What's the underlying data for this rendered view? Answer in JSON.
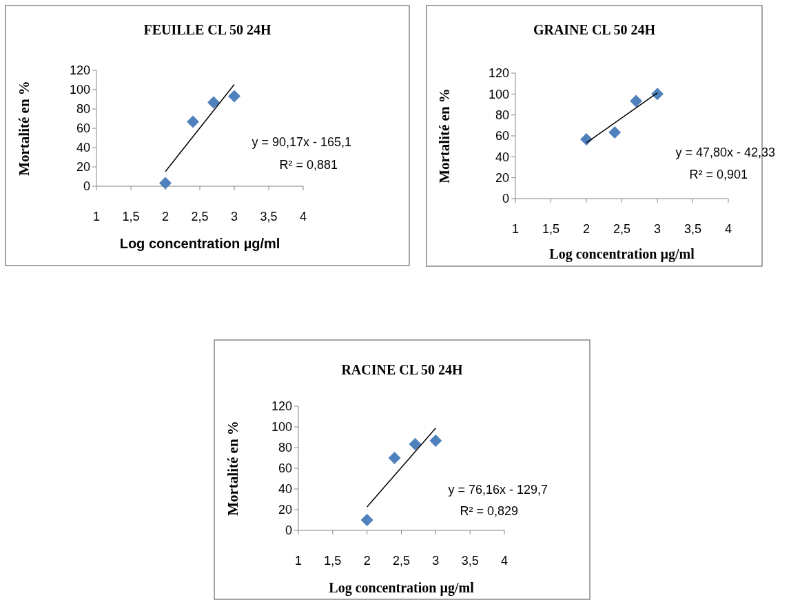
{
  "chart_data": [
    {
      "type": "scatter",
      "title": "FEUILLE CL 50 24H",
      "xlabel": "Log concentration µg/ml",
      "ylabel": "Mortalité en %",
      "xlim": [
        1,
        4
      ],
      "xticks": [
        1,
        {
          "value": 1.5,
          "label": "1,5"
        },
        2,
        {
          "value": 2.5,
          "label": "2,5"
        },
        3,
        {
          "value": 3.5,
          "label": "3,5"
        },
        4
      ],
      "ylim": [
        0,
        120
      ],
      "yticks": [
        0,
        20,
        40,
        60,
        80,
        100,
        120
      ],
      "grid": false,
      "series": [
        {
          "color": "#4f81bd",
          "marker": "diamond",
          "x": [
            2,
            2.4,
            2.7,
            3
          ],
          "values": [
            3.3,
            66.7,
            86.7,
            93.3
          ]
        },
        {
          "type": "line",
          "color": "#000000",
          "marker": "none",
          "x": [
            2,
            3
          ],
          "values": [
            15.2,
            105.4
          ]
        }
      ],
      "annotations": [
        "y = 90,17x - 165,1",
        "R² = 0,881"
      ]
    },
    {
      "type": "scatter",
      "title": "GRAINE CL 50 24H",
      "xlabel": "Log concentration µg/ml",
      "ylabel": "Mortalité en %",
      "xlim": [
        1,
        4
      ],
      "xticks": [
        1,
        {
          "value": 1.5,
          "label": "1,5"
        },
        2,
        {
          "value": 2.5,
          "label": "2,5"
        },
        3,
        {
          "value": 3.5,
          "label": "3,5"
        },
        4
      ],
      "ylim": [
        0,
        120
      ],
      "yticks": [
        0,
        20,
        40,
        60,
        80,
        100,
        120
      ],
      "grid": false,
      "series": [
        {
          "color": "#4f81bd",
          "marker": "diamond",
          "x": [
            2,
            2.4,
            2.7,
            3
          ],
          "values": [
            56.7,
            63.3,
            93.3,
            100
          ]
        },
        {
          "type": "line",
          "color": "#000000",
          "marker": "none",
          "x": [
            2,
            3
          ],
          "values": [
            53.3,
            101.1
          ]
        }
      ],
      "annotations": [
        "y = 47,80x - 42,33",
        "R² = 0,901"
      ]
    },
    {
      "type": "scatter",
      "title": "RACINE  CL 50 24H",
      "xlabel": "Log concentration µg/ml",
      "ylabel": "Mortalité en %",
      "xlim": [
        1,
        4
      ],
      "xticks": [
        1,
        {
          "value": 1.5,
          "label": "1,5"
        },
        2,
        {
          "value": 2.5,
          "label": "2,5"
        },
        3,
        {
          "value": 3.5,
          "label": "3,5"
        },
        4
      ],
      "ylim": [
        0,
        120
      ],
      "yticks": [
        0,
        20,
        40,
        60,
        80,
        100,
        120
      ],
      "grid": false,
      "series": [
        {
          "color": "#4f81bd",
          "marker": "diamond",
          "x": [
            2,
            2.4,
            2.7,
            3
          ],
          "values": [
            10,
            70,
            83.3,
            86.7
          ]
        },
        {
          "type": "line",
          "color": "#000000",
          "marker": "none",
          "x": [
            2,
            3
          ],
          "values": [
            22.6,
            98.8
          ]
        }
      ],
      "annotations": [
        "y = 76,16x - 129,7",
        "R² = 0,829"
      ]
    }
  ]
}
